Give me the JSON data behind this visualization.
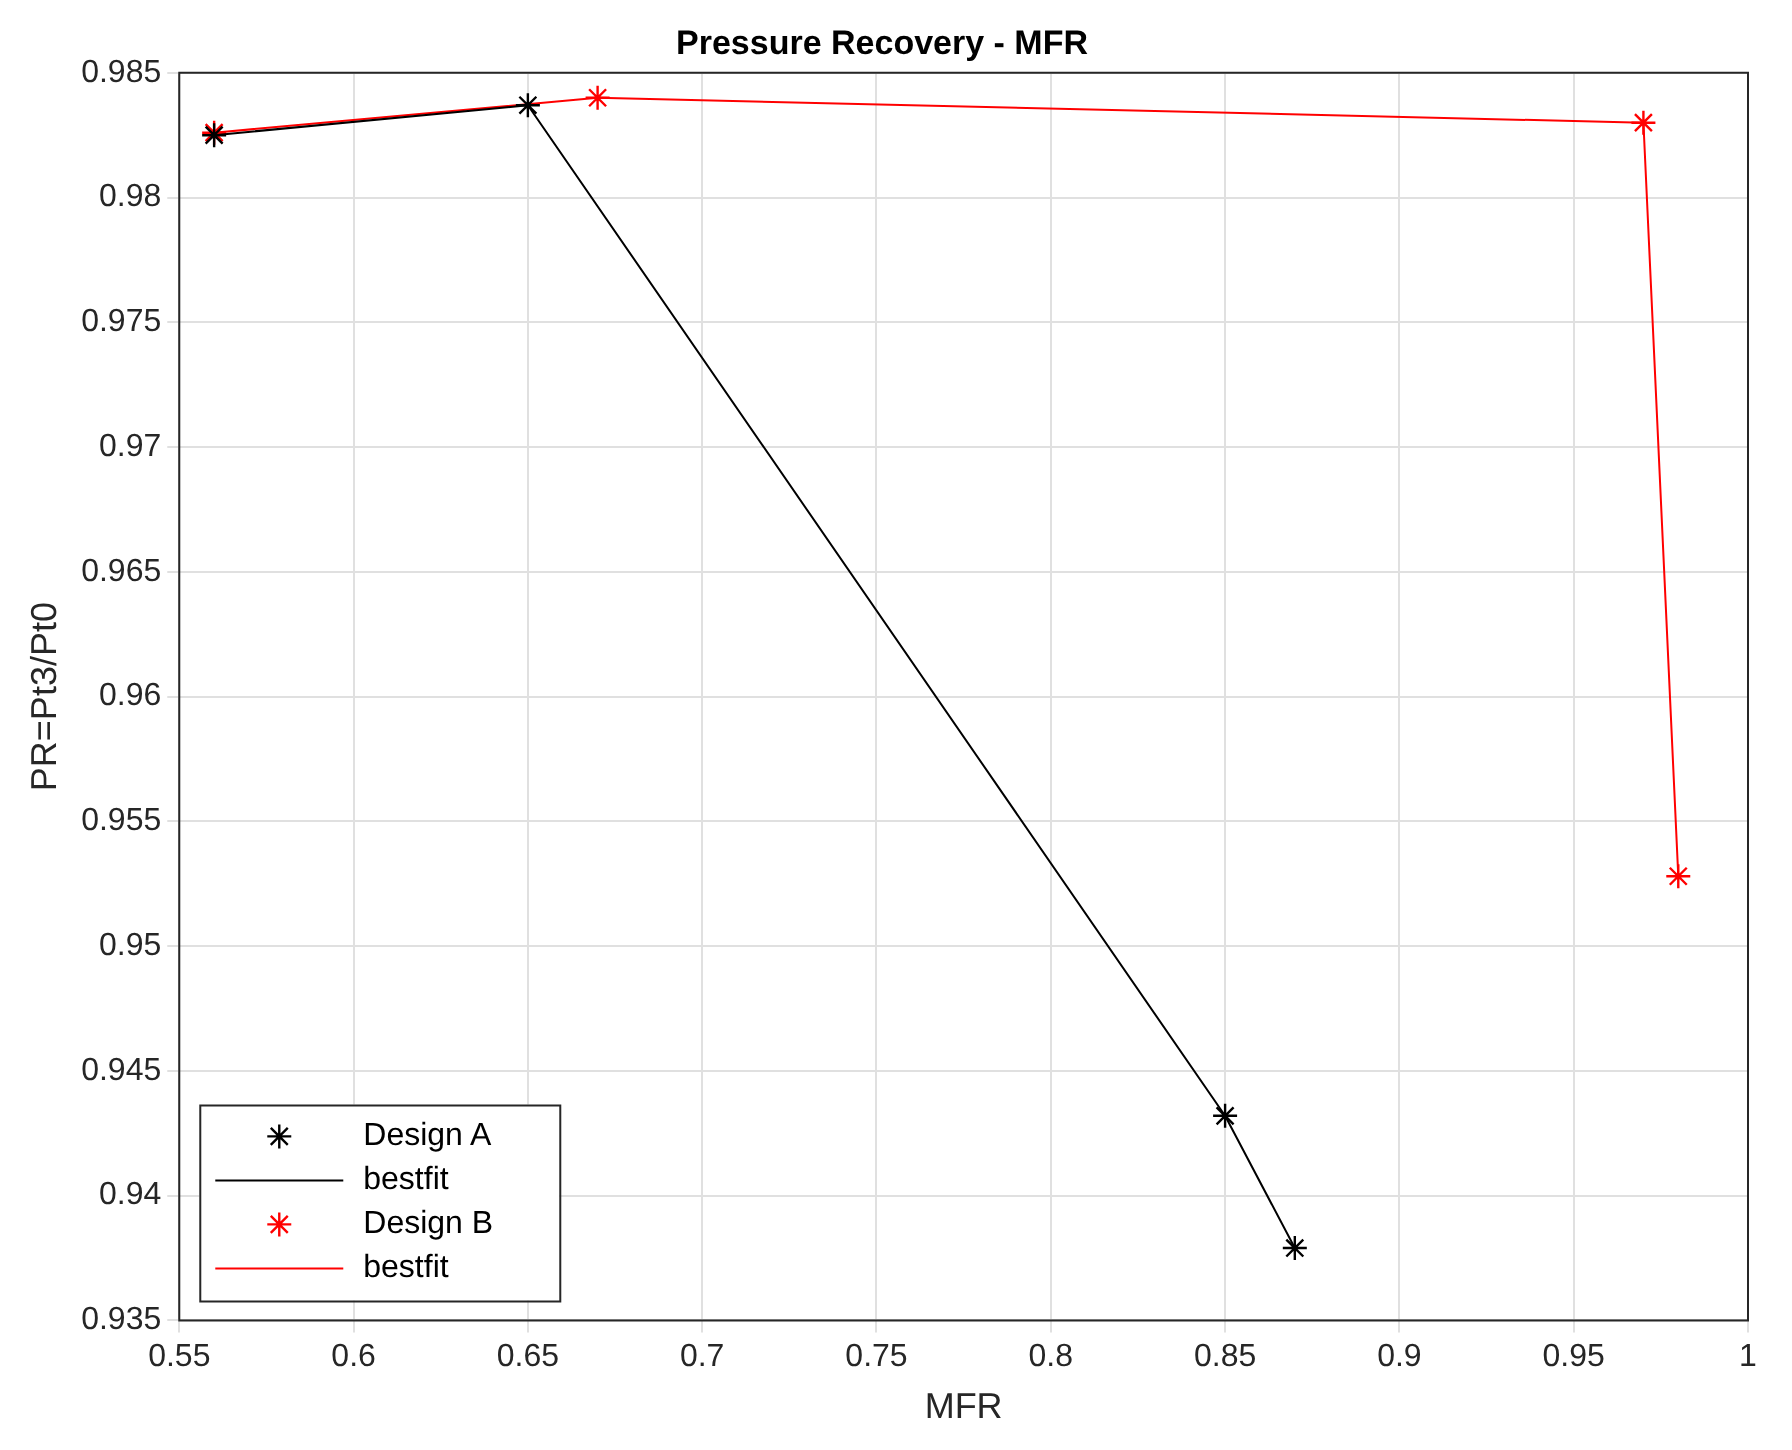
{
  "chart_data": {
    "type": "line",
    "title": "Pressure Recovery - MFR",
    "xlabel": "MFR",
    "ylabel": "PR=Pt3/Pt0",
    "xlim": [
      0.55,
      1
    ],
    "xticks": [
      0.55,
      0.6,
      0.65,
      0.7,
      0.75,
      0.8,
      0.85,
      0.9,
      0.95,
      1
    ],
    "ylim": [
      0.935,
      0.985
    ],
    "yticks": [
      0.935,
      0.94,
      0.945,
      0.95,
      0.955,
      0.96,
      0.965,
      0.97,
      0.975,
      0.98,
      0.985
    ],
    "grid": true,
    "legend": "bottom left",
    "series": [
      {
        "name": "Design A",
        "type": "scatter",
        "marker": "cross",
        "color": "#000000",
        "x": [
          0.56,
          0.65,
          0.85,
          0.87
        ],
        "values": [
          0.9825,
          0.9837,
          0.9432,
          0.9379
        ]
      },
      {
        "name": "bestfit",
        "type": "line",
        "marker": "none",
        "color": "#000000",
        "x": [
          0.56,
          0.65,
          0.85,
          0.87
        ],
        "values": [
          0.9825,
          0.9837,
          0.9432,
          0.9379
        ]
      },
      {
        "name": "Design B",
        "type": "scatter",
        "marker": "cross",
        "color": "#ff0000",
        "x": [
          0.56,
          0.67,
          0.97,
          0.98
        ],
        "values": [
          0.9826,
          0.984,
          0.983,
          0.9528
        ]
      },
      {
        "name": "bestfit",
        "type": "line",
        "marker": "none",
        "color": "#ff0000",
        "x": [
          0.56,
          0.67,
          0.97,
          0.98
        ],
        "values": [
          0.9826,
          0.984,
          0.983,
          0.9528
        ]
      }
    ]
  }
}
